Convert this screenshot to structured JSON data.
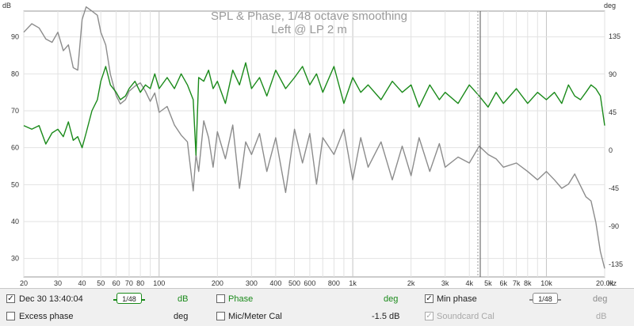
{
  "title": "SPL & Phase, 1/48 octave smoothing",
  "subtitle": "Left @ LP 2 m",
  "left_unit": "dB",
  "right_unit": "deg",
  "x_unit": "Hz",
  "left_ticks": [
    "90",
    "80",
    "70",
    "60",
    "50",
    "40",
    "30"
  ],
  "right_ticks": [
    "135",
    "90",
    "45",
    "0",
    "-45",
    "-90",
    "-135"
  ],
  "x_ticks": [
    "20",
    "30",
    "40",
    "50",
    "60",
    "70",
    "80",
    "100",
    "200",
    "300",
    "400",
    "500",
    "600",
    "800",
    "1k",
    "2k",
    "3k",
    "4k",
    "5k",
    "6k",
    "7k",
    "8k",
    "10k",
    "20.0k"
  ],
  "colors": {
    "spl": "#1a8a1a",
    "phase": "#8c8c8c",
    "phase_dim": "#a8a8a8",
    "accent": "#1a8a1a"
  },
  "chart_data": {
    "type": "line",
    "title": "SPL & Phase, 1/48 octave smoothing",
    "subtitle": "Left @ LP 2 m",
    "x_scale": "log",
    "xlim": [
      20,
      20000
    ],
    "ylim_left": [
      25,
      97
    ],
    "ylim_right": [
      -150,
      165
    ],
    "series": [
      {
        "name": "Dec 30 13:40:04",
        "axis": "left",
        "x": [
          20,
          22,
          24,
          26,
          28,
          30,
          32,
          34,
          36,
          38,
          40,
          42,
          45,
          48,
          50,
          53,
          56,
          60,
          63,
          67,
          70,
          75,
          80,
          85,
          90,
          95,
          100,
          110,
          120,
          130,
          140,
          150,
          155,
          160,
          170,
          180,
          190,
          200,
          220,
          240,
          260,
          280,
          300,
          330,
          360,
          400,
          450,
          500,
          550,
          600,
          650,
          700,
          800,
          900,
          1000,
          1100,
          1200,
          1400,
          1600,
          1800,
          2000,
          2200,
          2500,
          2800,
          3000,
          3500,
          4000,
          4500,
          5000,
          5500,
          6000,
          7000,
          8000,
          9000,
          10000,
          11000,
          12000,
          13000,
          14000,
          15000,
          16000,
          17000,
          18000,
          19000,
          20000
        ],
        "y": [
          66,
          65,
          66,
          61,
          64,
          65,
          63,
          67,
          62,
          63,
          60,
          64,
          70,
          73,
          78,
          82,
          77,
          75,
          73,
          74,
          76,
          78,
          75,
          77,
          76,
          80,
          76,
          79,
          76,
          80,
          77,
          73,
          58,
          79,
          78,
          81,
          76,
          78,
          72,
          81,
          77,
          83,
          76,
          79,
          74,
          81,
          76,
          79,
          82,
          77,
          80,
          75,
          82,
          72,
          79,
          75,
          77,
          73,
          78,
          75,
          77,
          71,
          77,
          73,
          75,
          72,
          77,
          74,
          71,
          75,
          72,
          76,
          72,
          75,
          73,
          75,
          72,
          77,
          74,
          73,
          75,
          77,
          76,
          74,
          66
        ]
      },
      {
        "name": "Min phase",
        "axis": "right",
        "x": [
          20,
          22,
          24,
          26,
          28,
          30,
          32,
          34,
          36,
          38,
          40,
          42,
          45,
          48,
          50,
          53,
          56,
          60,
          63,
          67,
          70,
          75,
          80,
          85,
          90,
          95,
          100,
          110,
          120,
          130,
          140,
          150,
          155,
          160,
          170,
          180,
          190,
          200,
          220,
          240,
          260,
          280,
          300,
          330,
          360,
          400,
          450,
          500,
          550,
          600,
          650,
          700,
          800,
          900,
          1000,
          1100,
          1200,
          1400,
          1600,
          1800,
          2000,
          2200,
          2500,
          2800,
          3000,
          3500,
          4000,
          4500,
          5000,
          5500,
          6000,
          7000,
          8000,
          9000,
          10000,
          11000,
          12000,
          13000,
          14000,
          15000,
          16000,
          17000,
          18000,
          19000,
          20000
        ],
        "y": [
          140,
          150,
          145,
          132,
          128,
          140,
          118,
          125,
          98,
          95,
          155,
          170,
          165,
          160,
          140,
          125,
          90,
          65,
          55,
          60,
          70,
          76,
          80,
          70,
          58,
          68,
          45,
          52,
          30,
          18,
          10,
          -48,
          -5,
          -25,
          35,
          15,
          -20,
          22,
          -10,
          30,
          -45,
          10,
          -5,
          20,
          -25,
          15,
          -50,
          25,
          -15,
          20,
          -40,
          15,
          -5,
          25,
          -35,
          15,
          -20,
          10,
          -35,
          5,
          -30,
          15,
          -25,
          8,
          -20,
          -8,
          -15,
          5,
          -5,
          -10,
          -20,
          -15,
          -25,
          -35,
          -25,
          -35,
          -45,
          -40,
          -28,
          -42,
          -55,
          -60,
          -85,
          -120,
          -140
        ]
      }
    ]
  },
  "legend": {
    "row1": {
      "measurement": {
        "label": "Dec 30 13:40:04",
        "checked": true,
        "smoothing": "1/48",
        "unit": "dB"
      },
      "phase": {
        "label": "Phase",
        "checked": false,
        "unit": "deg"
      },
      "min_phase": {
        "label": "Min phase",
        "checked": true,
        "smoothing": "1/48",
        "unit": "deg"
      }
    },
    "row2": {
      "excess_phase": {
        "label": "Excess phase",
        "checked": false,
        "unit": "deg"
      },
      "mic_cal": {
        "label": "Mic/Meter Cal",
        "checked": false,
        "value": "-1.5 dB"
      },
      "soundcard_cal": {
        "label": "Soundcard Cal",
        "checked": true,
        "unit": "dB"
      }
    }
  }
}
